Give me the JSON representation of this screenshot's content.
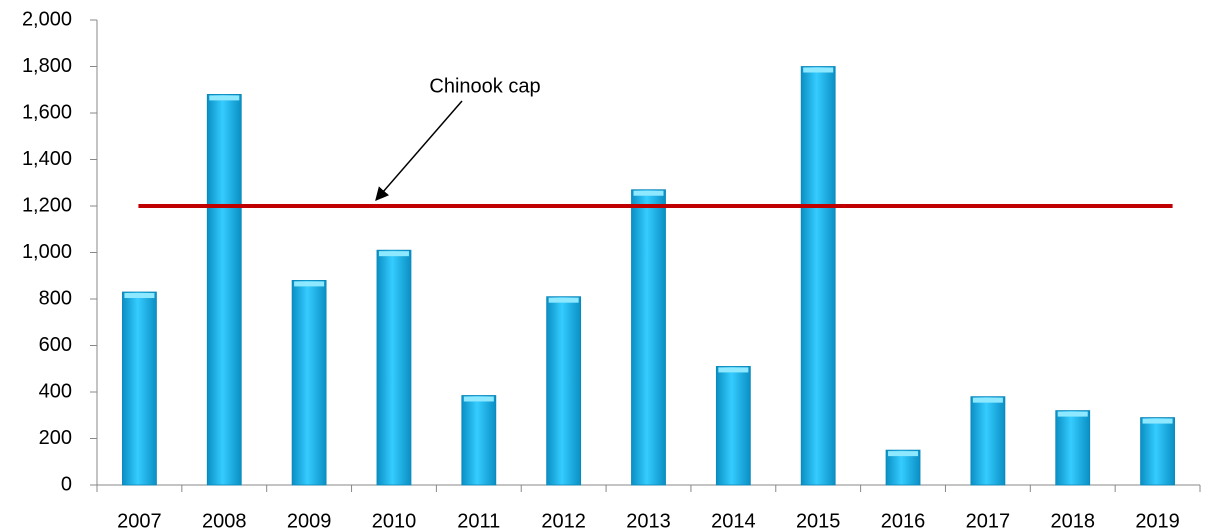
{
  "chart_data": {
    "type": "bar",
    "categories": [
      "2007",
      "2008",
      "2009",
      "2010",
      "2011",
      "2012",
      "2013",
      "2014",
      "2015",
      "2016",
      "2017",
      "2018",
      "2019"
    ],
    "values": [
      830,
      1680,
      880,
      1010,
      385,
      810,
      1270,
      510,
      1800,
      150,
      380,
      320,
      290
    ],
    "color": "#1ab4e8",
    "ylim": [
      0,
      2000
    ],
    "yticks": [
      0,
      200,
      400,
      600,
      800,
      {
        "value": 1000,
        "label": "1,000"
      },
      {
        "value": 1200,
        "label": "1,200"
      },
      {
        "value": 1400,
        "label": "1,400"
      },
      {
        "value": 1600,
        "label": "1,600"
      },
      {
        "value": 1800,
        "label": "1,800"
      },
      {
        "value": 2000,
        "label": "2,000"
      }
    ],
    "grid": false,
    "cap": {
      "label": "Chinook cap",
      "value": 1200,
      "color": "#c00000"
    }
  }
}
